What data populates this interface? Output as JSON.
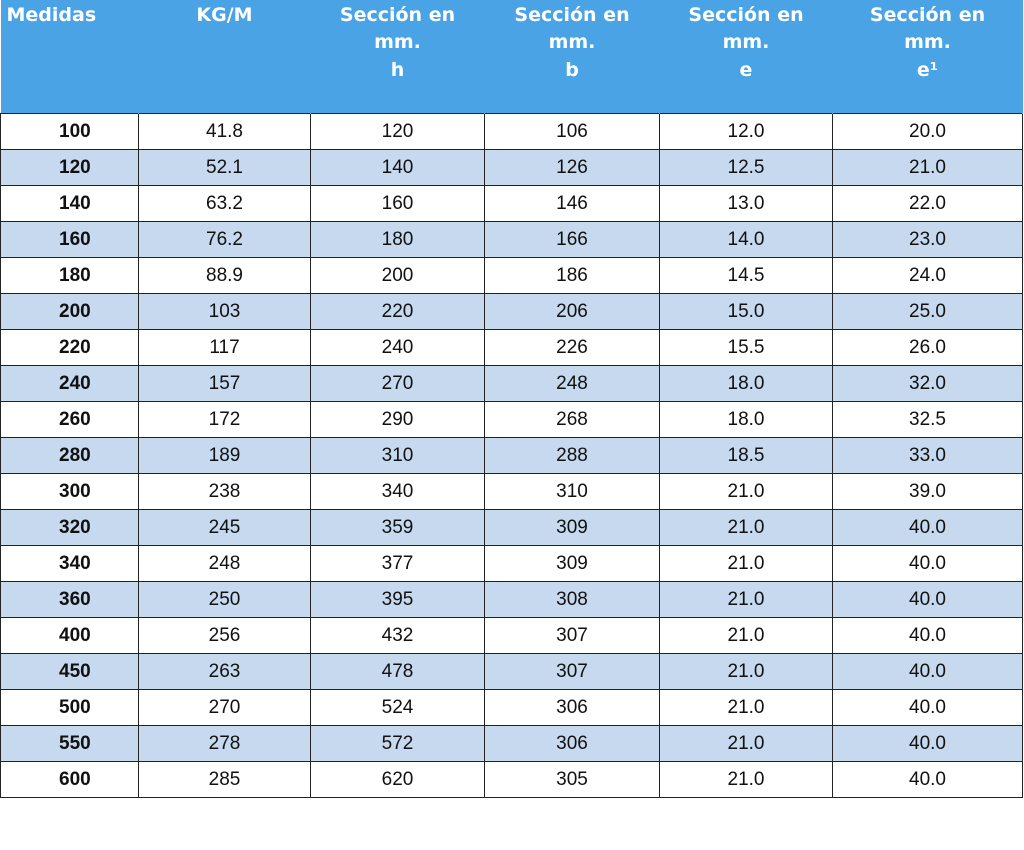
{
  "table": {
    "headers": [
      {
        "lines": [
          "Medidas"
        ]
      },
      {
        "lines": [
          "KG/M"
        ]
      },
      {
        "lines": [
          "Sección en",
          "mm.",
          "h"
        ]
      },
      {
        "lines": [
          "Sección en",
          "mm.",
          "b"
        ]
      },
      {
        "lines": [
          "Sección en",
          "mm.",
          "e"
        ]
      },
      {
        "lines": [
          "Sección en",
          "mm.",
          "e¹"
        ]
      }
    ],
    "rows": [
      [
        "100",
        "41.8",
        "120",
        "106",
        "12.0",
        "20.0"
      ],
      [
        "120",
        "52.1",
        "140",
        "126",
        "12.5",
        "21.0"
      ],
      [
        "140",
        "63.2",
        "160",
        "146",
        "13.0",
        "22.0"
      ],
      [
        "160",
        "76.2",
        "180",
        "166",
        "14.0",
        "23.0"
      ],
      [
        "180",
        "88.9",
        "200",
        "186",
        "14.5",
        "24.0"
      ],
      [
        "200",
        "103",
        "220",
        "206",
        "15.0",
        "25.0"
      ],
      [
        "220",
        "117",
        "240",
        "226",
        "15.5",
        "26.0"
      ],
      [
        "240",
        "157",
        "270",
        "248",
        "18.0",
        "32.0"
      ],
      [
        "260",
        "172",
        "290",
        "268",
        "18.0",
        "32.5"
      ],
      [
        "280",
        "189",
        "310",
        "288",
        "18.5",
        "33.0"
      ],
      [
        "300",
        "238",
        "340",
        "310",
        "21.0",
        "39.0"
      ],
      [
        "320",
        "245",
        "359",
        "309",
        "21.0",
        "40.0"
      ],
      [
        "340",
        "248",
        "377",
        "309",
        "21.0",
        "40.0"
      ],
      [
        "360",
        "250",
        "395",
        "308",
        "21.0",
        "40.0"
      ],
      [
        "400",
        "256",
        "432",
        "307",
        "21.0",
        "40.0"
      ],
      [
        "450",
        "263",
        "478",
        "307",
        "21.0",
        "40.0"
      ],
      [
        "500",
        "270",
        "524",
        "306",
        "21.0",
        "40.0"
      ],
      [
        "550",
        "278",
        "572",
        "306",
        "21.0",
        "40.0"
      ],
      [
        "600",
        "285",
        "620",
        "305",
        "21.0",
        "40.0"
      ]
    ]
  },
  "colors": {
    "header_background": "#4aa3e4",
    "header_text": "#ffffff",
    "alternate_row": "#c6d9ef",
    "row": "#ffffff",
    "grid_border": "#232323"
  }
}
